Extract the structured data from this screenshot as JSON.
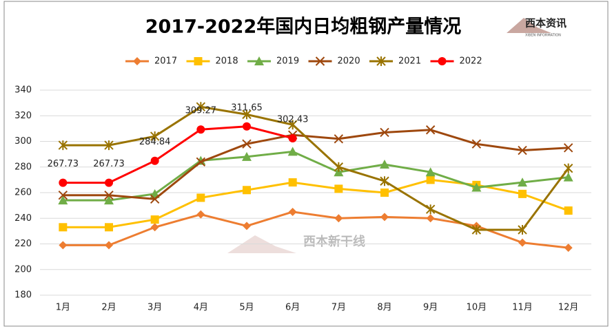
{
  "chart_data": {
    "type": "line",
    "title": "2017-2022年国内日均粗钢产量情况",
    "logo": {
      "name": "西本资讯",
      "subtitle": "XIBEN INFORMATION"
    },
    "watermark": "西本新干线",
    "categories": [
      "1月",
      "2月",
      "3月",
      "4月",
      "5月",
      "6月",
      "7月",
      "8月",
      "9月",
      "10月",
      "11月",
      "12月"
    ],
    "series": [
      {
        "name": "2017",
        "color": "#ed7d31",
        "marker": "diamond",
        "values": [
          219,
          219,
          233,
          243,
          234,
          245,
          240,
          241,
          240,
          234,
          221,
          217
        ]
      },
      {
        "name": "2018",
        "color": "#ffc000",
        "marker": "square",
        "values": [
          233,
          233,
          239,
          256,
          262,
          268,
          263,
          260,
          270,
          266,
          259,
          246
        ]
      },
      {
        "name": "2019",
        "color": "#70ad47",
        "marker": "triangle",
        "values": [
          254,
          254,
          259,
          285,
          288,
          292,
          276,
          282,
          276,
          264,
          268,
          272
        ]
      },
      {
        "name": "2020",
        "color": "#9e480e",
        "marker": "x",
        "values": [
          258,
          258,
          255,
          284,
          298,
          305,
          302,
          307,
          309,
          298,
          293,
          295
        ]
      },
      {
        "name": "2021",
        "color": "#997300",
        "marker": "star",
        "values": [
          297,
          297,
          304,
          327,
          321,
          313,
          280,
          269,
          247,
          231,
          231,
          279
        ]
      },
      {
        "name": "2022",
        "color": "#ff0000",
        "marker": "circle",
        "values": [
          267.73,
          267.73,
          284.84,
          309.27,
          311.65,
          302.43,
          null,
          null,
          null,
          null,
          null,
          null
        ],
        "show_labels": true
      }
    ],
    "ylim": [
      180,
      340
    ],
    "yticks": [
      180,
      200,
      220,
      240,
      260,
      280,
      300,
      320,
      340
    ],
    "grid": true,
    "legend": "top"
  }
}
